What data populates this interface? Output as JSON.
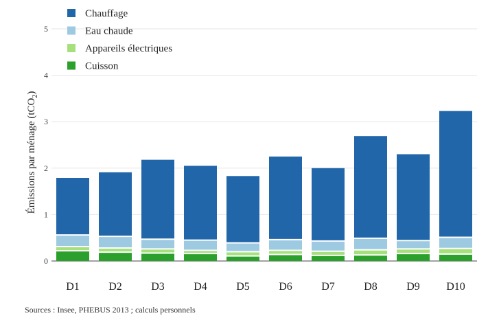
{
  "chart_data": {
    "type": "bar",
    "stacked": true,
    "title": "",
    "xlabel": "",
    "ylabel_prefix": "Émissions par ménage (tCO",
    "ylabel_sub": "2",
    "ylabel_suffix": ")",
    "ylim": [
      0,
      5
    ],
    "yticks": [
      "0",
      "1",
      "2",
      "3",
      "4",
      "5"
    ],
    "grid": true,
    "legend_position": "top-left",
    "categories": [
      "D1",
      "D2",
      "D3",
      "D4",
      "D5",
      "D6",
      "D7",
      "D8",
      "D9",
      "D10"
    ],
    "series": [
      {
        "name": "Cuisson",
        "color": "#2ca02c",
        "values": [
          0.22,
          0.19,
          0.17,
          0.16,
          0.11,
          0.14,
          0.12,
          0.13,
          0.16,
          0.15
        ]
      },
      {
        "name": "Appareils électriques",
        "color": "#a6e07d",
        "values": [
          0.09,
          0.09,
          0.09,
          0.07,
          0.09,
          0.09,
          0.09,
          0.11,
          0.1,
          0.12
        ]
      },
      {
        "name": "Eau chaude",
        "color": "#9ecae1",
        "values": [
          0.25,
          0.25,
          0.21,
          0.22,
          0.19,
          0.23,
          0.22,
          0.25,
          0.18,
          0.24
        ]
      },
      {
        "name": "Chauffage",
        "color": "#2266aa",
        "values": [
          1.23,
          1.38,
          1.71,
          1.6,
          1.44,
          1.79,
          1.57,
          2.2,
          1.86,
          2.72
        ]
      }
    ],
    "legend_order": [
      "Chauffage",
      "Eau chaude",
      "Appareils électriques",
      "Cuisson"
    ],
    "source": "Sources : Insee, PHEBUS 2013 ; calculs personnels"
  }
}
